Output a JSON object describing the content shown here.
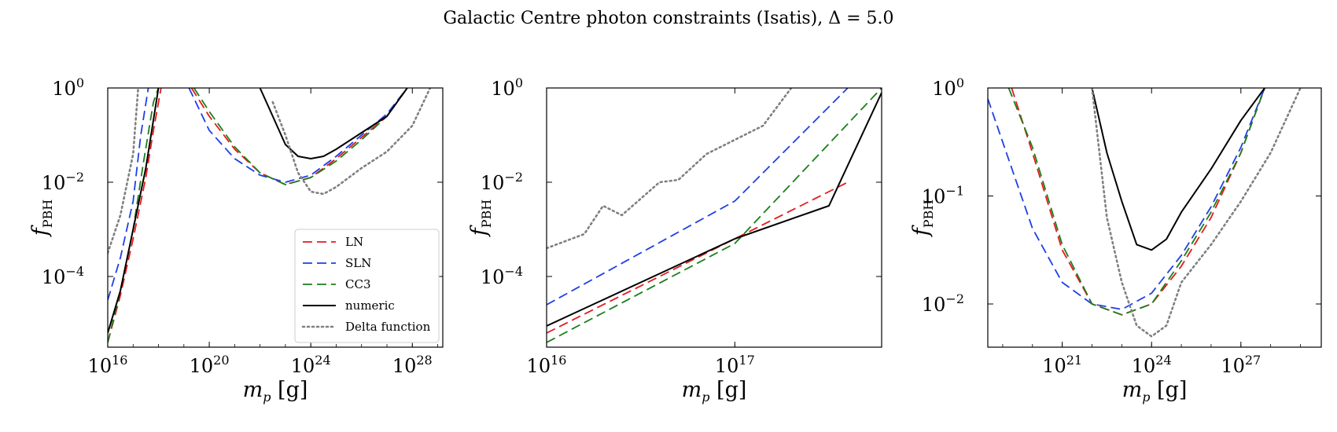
{
  "figure": {
    "title": "Galactic Centre photon constraints (Isatis), Δ = 5.0"
  },
  "colors": {
    "LN": "#e41a1c",
    "SLN": "#1f3fe8",
    "CC3": "#1a7f1a",
    "numeric": "#000000",
    "Delta function": "#808080"
  },
  "chart_data": [
    {
      "type": "line",
      "xlabel": "m_p [g]",
      "ylabel": "f_PBH",
      "xscale": "log",
      "yscale": "log",
      "xlim_log10": [
        16,
        29.2
      ],
      "ylim_log10": [
        -5.5,
        0
      ],
      "xticks": [
        {
          "exp": 16,
          "base": "10",
          "sup": "16"
        },
        {
          "exp": 20,
          "base": "10",
          "sup": "20"
        },
        {
          "exp": 24,
          "base": "10",
          "sup": "24"
        },
        {
          "exp": 28,
          "base": "10",
          "sup": "28"
        }
      ],
      "yticks": [
        {
          "exp": 0,
          "base": "10",
          "sup": "0"
        },
        {
          "exp": -2,
          "base": "10",
          "sup": "−2"
        },
        {
          "exp": -4,
          "base": "10",
          "sup": "−4"
        }
      ],
      "legend": {
        "position": "lower right",
        "entries": [
          "LN",
          "SLN",
          "CC3",
          "numeric",
          "Delta function"
        ]
      },
      "series": [
        {
          "name": "LN",
          "style": "dash",
          "points": [
            [
              16.0,
              -5.4
            ],
            [
              16.5,
              -4.4
            ],
            [
              17.0,
              -3.2
            ],
            [
              17.5,
              -1.9
            ],
            [
              17.8,
              -0.9
            ],
            [
              18.1,
              0.0
            ],
            [
              null,
              null
            ],
            [
              19.3,
              0.0
            ],
            [
              20.0,
              -0.6
            ],
            [
              21.0,
              -1.3
            ],
            [
              22.0,
              -1.8
            ],
            [
              23.0,
              -2.05
            ],
            [
              24.0,
              -1.9
            ],
            [
              25.0,
              -1.5
            ],
            [
              26.0,
              -1.05
            ],
            [
              27.0,
              -0.6
            ],
            [
              27.8,
              0.0
            ]
          ]
        },
        {
          "name": "SLN",
          "style": "dash",
          "points": [
            [
              16.0,
              -4.5
            ],
            [
              16.5,
              -3.6
            ],
            [
              17.0,
              -2.4
            ],
            [
              17.3,
              -1.0
            ],
            [
              17.6,
              0.0
            ],
            [
              null,
              null
            ],
            [
              19.2,
              0.0
            ],
            [
              20.0,
              -0.9
            ],
            [
              21.0,
              -1.5
            ],
            [
              22.0,
              -1.85
            ],
            [
              23.0,
              -2.0
            ],
            [
              24.0,
              -1.85
            ],
            [
              25.0,
              -1.45
            ],
            [
              26.0,
              -1.0
            ],
            [
              27.0,
              -0.55
            ],
            [
              27.8,
              0.0
            ]
          ]
        },
        {
          "name": "CC3",
          "style": "dash",
          "points": [
            [
              16.0,
              -5.4
            ],
            [
              16.5,
              -4.3
            ],
            [
              17.0,
              -3.0
            ],
            [
              17.4,
              -1.6
            ],
            [
              17.8,
              -0.3
            ],
            [
              18.0,
              0.0
            ],
            [
              null,
              null
            ],
            [
              19.4,
              0.0
            ],
            [
              20.0,
              -0.5
            ],
            [
              21.0,
              -1.25
            ],
            [
              22.0,
              -1.8
            ],
            [
              23.0,
              -2.05
            ],
            [
              24.0,
              -1.9
            ],
            [
              25.0,
              -1.55
            ],
            [
              26.0,
              -1.1
            ],
            [
              27.0,
              -0.6
            ],
            [
              27.8,
              0.0
            ]
          ]
        },
        {
          "name": "numeric",
          "style": "solid",
          "points": [
            [
              16.0,
              -5.2
            ],
            [
              16.5,
              -4.3
            ],
            [
              17.0,
              -3.0
            ],
            [
              17.5,
              -1.7
            ],
            [
              18.0,
              0.0
            ],
            [
              null,
              null
            ],
            [
              22.0,
              0.0
            ],
            [
              22.5,
              -0.6
            ],
            [
              23.0,
              -1.2
            ],
            [
              23.5,
              -1.45
            ],
            [
              24.0,
              -1.5
            ],
            [
              24.5,
              -1.45
            ],
            [
              25.0,
              -1.3
            ],
            [
              26.0,
              -0.95
            ],
            [
              27.0,
              -0.6
            ],
            [
              27.8,
              0.0
            ]
          ]
        },
        {
          "name": "Delta function",
          "style": "dot",
          "points": [
            [
              16.0,
              -3.5
            ],
            [
              16.5,
              -2.7
            ],
            [
              17.0,
              -1.4
            ],
            [
              17.2,
              0.0
            ],
            [
              null,
              null
            ],
            [
              22.5,
              -0.3
            ],
            [
              23.0,
              -1.0
            ],
            [
              23.5,
              -1.8
            ],
            [
              24.0,
              -2.2
            ],
            [
              24.5,
              -2.25
            ],
            [
              25.0,
              -2.1
            ],
            [
              26.0,
              -1.7
            ],
            [
              27.0,
              -1.35
            ],
            [
              28.0,
              -0.8
            ],
            [
              28.7,
              0.0
            ]
          ]
        }
      ]
    },
    {
      "type": "line",
      "xlabel": "m_p [g]",
      "ylabel": "f_PBH",
      "xscale": "log",
      "yscale": "log",
      "xlim_log10": [
        16,
        17.78
      ],
      "ylim_log10": [
        -5.5,
        0
      ],
      "xticks": [
        {
          "exp": 16,
          "base": "10",
          "sup": "16"
        },
        {
          "exp": 17,
          "base": "10",
          "sup": "17"
        }
      ],
      "yticks": [
        {
          "exp": 0,
          "base": "10",
          "sup": "0"
        },
        {
          "exp": -2,
          "base": "10",
          "sup": "−2"
        },
        {
          "exp": -4,
          "base": "10",
          "sup": "−4"
        }
      ],
      "series": [
        {
          "name": "LN",
          "style": "dash",
          "points": [
            [
              16.0,
              -5.2
            ],
            [
              17.0,
              -3.2
            ],
            [
              17.6,
              -2.0
            ]
          ]
        },
        {
          "name": "SLN",
          "style": "dash",
          "points": [
            [
              16.0,
              -4.6
            ],
            [
              17.0,
              -2.4
            ],
            [
              17.6,
              0.0
            ]
          ]
        },
        {
          "name": "CC3",
          "style": "dash",
          "points": [
            [
              16.0,
              -5.4
            ],
            [
              17.0,
              -3.3
            ],
            [
              17.78,
              0.0
            ]
          ]
        },
        {
          "name": "numeric",
          "style": "solid",
          "points": [
            [
              16.0,
              -5.05
            ],
            [
              17.0,
              -3.2
            ],
            [
              17.5,
              -2.5
            ],
            [
              17.78,
              -0.1
            ]
          ]
        },
        {
          "name": "Delta function",
          "style": "dot",
          "points": [
            [
              16.0,
              -3.4
            ],
            [
              16.2,
              -3.1
            ],
            [
              16.3,
              -2.5
            ],
            [
              16.4,
              -2.7
            ],
            [
              16.6,
              -2.0
            ],
            [
              16.7,
              -1.95
            ],
            [
              16.85,
              -1.4
            ],
            [
              17.0,
              -1.1
            ],
            [
              17.15,
              -0.8
            ],
            [
              17.3,
              0.0
            ]
          ]
        }
      ]
    },
    {
      "type": "line",
      "xlabel": "m_p [g]",
      "ylabel": "f_PBH",
      "xscale": "log",
      "yscale": "log",
      "xlim_log10": [
        18.5,
        29.7
      ],
      "ylim_log10": [
        -2.4,
        0
      ],
      "xticks": [
        {
          "exp": 21,
          "base": "10",
          "sup": "21"
        },
        {
          "exp": 24,
          "base": "10",
          "sup": "24"
        },
        {
          "exp": 27,
          "base": "10",
          "sup": "27"
        }
      ],
      "yticks": [
        {
          "exp": 0,
          "base": "10",
          "sup": "0"
        },
        {
          "exp": -1,
          "base": "10",
          "sup": "−1"
        },
        {
          "exp": -2,
          "base": "10",
          "sup": "−2"
        }
      ],
      "series": [
        {
          "name": "LN",
          "style": "dash",
          "points": [
            [
              19.3,
              0.0
            ],
            [
              20.0,
              -0.6
            ],
            [
              21.0,
              -1.5
            ],
            [
              22.0,
              -2.0
            ],
            [
              23.0,
              -2.1
            ],
            [
              24.0,
              -2.0
            ],
            [
              25.0,
              -1.65
            ],
            [
              26.0,
              -1.2
            ],
            [
              27.0,
              -0.6
            ],
            [
              27.8,
              0.0
            ]
          ]
        },
        {
          "name": "SLN",
          "style": "dash",
          "points": [
            [
              18.5,
              -0.1
            ],
            [
              19.0,
              -0.5
            ],
            [
              20.0,
              -1.3
            ],
            [
              21.0,
              -1.8
            ],
            [
              22.0,
              -2.0
            ],
            [
              23.0,
              -2.05
            ],
            [
              24.0,
              -1.9
            ],
            [
              25.0,
              -1.55
            ],
            [
              26.0,
              -1.1
            ],
            [
              27.0,
              -0.55
            ],
            [
              27.8,
              0.0
            ]
          ]
        },
        {
          "name": "CC3",
          "style": "dash",
          "points": [
            [
              19.2,
              0.0
            ],
            [
              20.0,
              -0.55
            ],
            [
              21.0,
              -1.45
            ],
            [
              22.0,
              -2.0
            ],
            [
              23.0,
              -2.1
            ],
            [
              24.0,
              -2.0
            ],
            [
              25.0,
              -1.6
            ],
            [
              26.0,
              -1.15
            ],
            [
              27.0,
              -0.6
            ],
            [
              27.8,
              0.0
            ]
          ]
        },
        {
          "name": "numeric",
          "style": "solid",
          "points": [
            [
              22.0,
              0.0
            ],
            [
              22.5,
              -0.6
            ],
            [
              23.0,
              -1.05
            ],
            [
              23.5,
              -1.45
            ],
            [
              24.0,
              -1.5
            ],
            [
              24.5,
              -1.4
            ],
            [
              25.0,
              -1.15
            ],
            [
              26.0,
              -0.75
            ],
            [
              27.0,
              -0.3
            ],
            [
              27.8,
              0.0
            ]
          ]
        },
        {
          "name": "Delta function",
          "style": "dot",
          "points": [
            [
              22.0,
              0.0
            ],
            [
              22.5,
              -1.2
            ],
            [
              23.0,
              -1.8
            ],
            [
              23.5,
              -2.2
            ],
            [
              24.0,
              -2.3
            ],
            [
              24.5,
              -2.2
            ],
            [
              25.0,
              -1.8
            ],
            [
              26.0,
              -1.45
            ],
            [
              27.0,
              -1.05
            ],
            [
              28.0,
              -0.6
            ],
            [
              29.0,
              0.0
            ]
          ]
        }
      ]
    }
  ]
}
